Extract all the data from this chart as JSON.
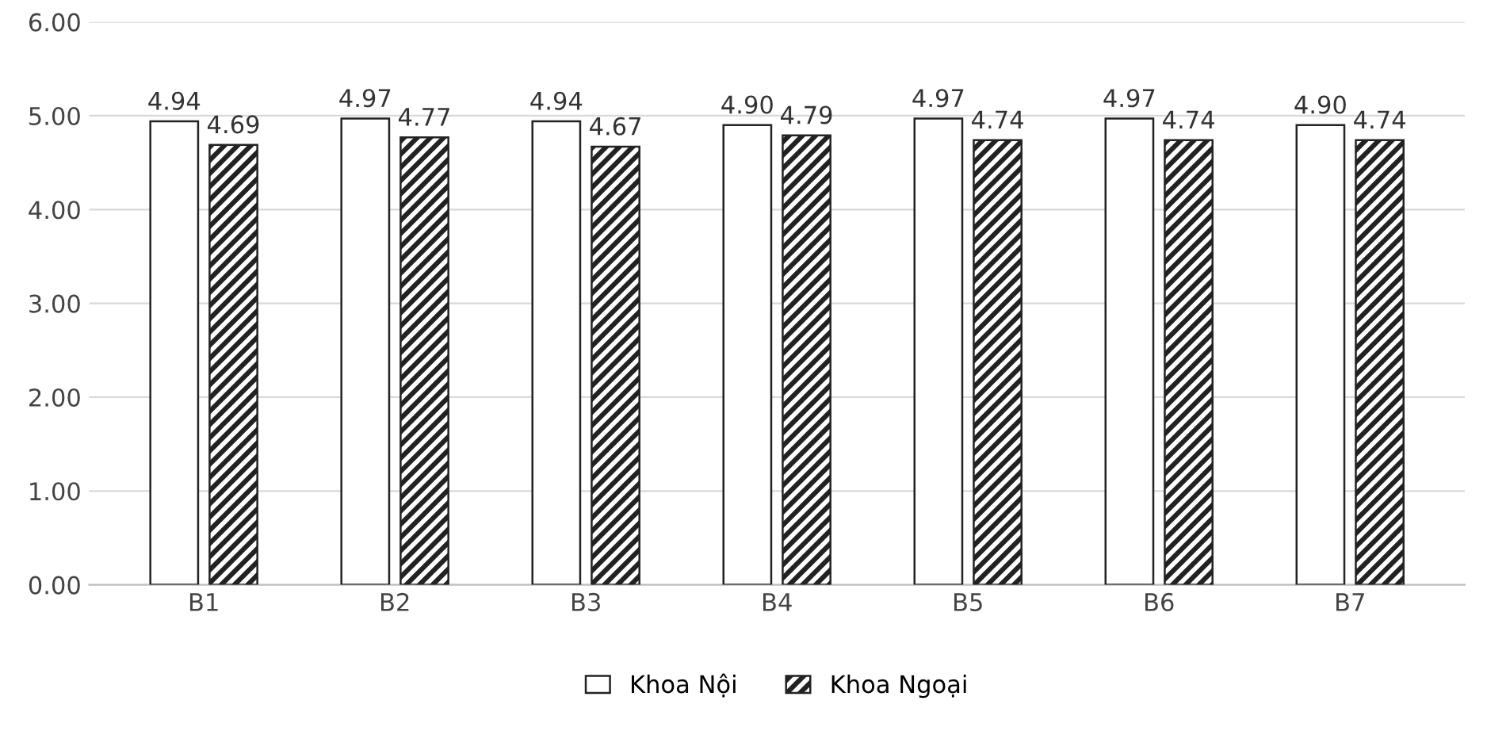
{
  "chart_data": {
    "type": "bar",
    "categories": [
      "B1",
      "B2",
      "B3",
      "B4",
      "B5",
      "B6",
      "B7"
    ],
    "series": [
      {
        "name": "Khoa Nội",
        "color": "#ffffff",
        "values": [
          4.94,
          4.97,
          4.94,
          4.9,
          4.97,
          4.97,
          4.9
        ],
        "value_labels": [
          "4.94",
          "4.97",
          "4.94",
          "4.90",
          "4.97",
          "4.97",
          "4.90"
        ]
      },
      {
        "name": "Khoa Ngoại",
        "color": "#222222",
        "values": [
          4.69,
          4.77,
          4.67,
          4.79,
          4.74,
          4.74,
          4.74
        ],
        "value_labels": [
          "4.69",
          "4.77",
          "4.67",
          "4.79",
          "4.74",
          "4.74",
          "4.74"
        ]
      }
    ],
    "ylim": [
      0,
      6
    ],
    "yticks": [
      {
        "value": 0,
        "label": "0.00"
      },
      {
        "value": 1,
        "label": "1.00"
      },
      {
        "value": 2,
        "label": "2.00"
      },
      {
        "value": 3,
        "label": "3.00"
      },
      {
        "value": 4,
        "label": "4.00"
      },
      {
        "value": 5,
        "label": "5.00"
      },
      {
        "value": 6,
        "label": "6.00"
      }
    ],
    "grid": "y",
    "legend": "bottom"
  }
}
